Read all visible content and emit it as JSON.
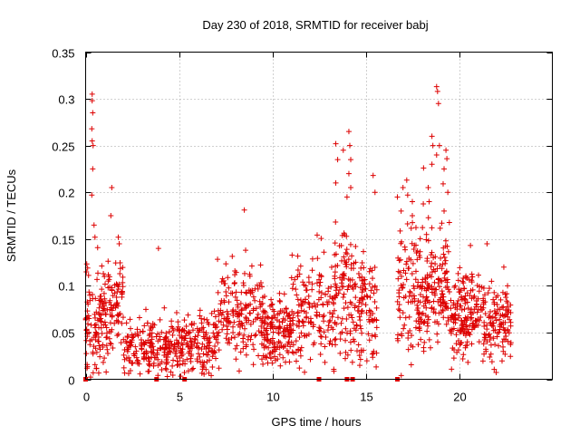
{
  "chart_data": {
    "type": "scatter",
    "title": "Day 230 of 2018, SRMTID for receiver babj",
    "xlabel": "GPS time / hours",
    "ylabel": "SRMTID / TECUs",
    "xlim": [
      0,
      25
    ],
    "ylim": [
      0,
      0.35
    ],
    "xticks": [
      0,
      5,
      10,
      15,
      20
    ],
    "xtick_labels": [
      "0",
      "5",
      "10",
      "15",
      "20"
    ],
    "yticks": [
      0,
      0.05,
      0.1,
      0.15,
      0.2,
      0.25,
      0.3,
      0.35
    ],
    "ytick_labels": [
      "0",
      "0.05",
      "0.1",
      "0.15",
      "0.2",
      "0.25",
      "0.3",
      "0.35"
    ],
    "grid": true,
    "marker": "+",
    "color": "#dd0000",
    "highlight_points": [
      [
        0.35,
        0.305
      ],
      [
        0.35,
        0.298
      ],
      [
        0.38,
        0.285
      ],
      [
        0.33,
        0.268
      ],
      [
        0.35,
        0.255
      ],
      [
        0.4,
        0.25
      ],
      [
        0.38,
        0.225
      ],
      [
        0.33,
        0.197
      ],
      [
        0.45,
        0.165
      ],
      [
        0.5,
        0.152
      ],
      [
        1.4,
        0.205
      ],
      [
        1.35,
        0.175
      ],
      [
        1.75,
        0.152
      ],
      [
        1.8,
        0.145
      ],
      [
        3.9,
        0.14
      ],
      [
        8.5,
        0.181
      ],
      [
        13.4,
        0.252
      ],
      [
        13.5,
        0.235
      ],
      [
        13.4,
        0.21
      ],
      [
        13.8,
        0.245
      ],
      [
        14.1,
        0.265
      ],
      [
        14.15,
        0.25
      ],
      [
        14.2,
        0.235
      ],
      [
        14.1,
        0.22
      ],
      [
        14.2,
        0.205
      ],
      [
        14.0,
        0.195
      ],
      [
        15.4,
        0.218
      ],
      [
        15.5,
        0.2
      ],
      [
        16.7,
        0.195
      ],
      [
        16.9,
        0.18
      ],
      [
        17.0,
        0.205
      ],
      [
        17.2,
        0.213
      ],
      [
        17.25,
        0.197
      ],
      [
        17.5,
        0.19
      ],
      [
        17.5,
        0.175
      ],
      [
        18.1,
        0.226
      ],
      [
        18.35,
        0.205
      ],
      [
        18.4,
        0.19
      ],
      [
        18.55,
        0.26
      ],
      [
        18.6,
        0.25
      ],
      [
        18.55,
        0.23
      ],
      [
        18.8,
        0.313
      ],
      [
        18.85,
        0.308
      ],
      [
        18.9,
        0.295
      ],
      [
        18.8,
        0.24
      ],
      [
        18.95,
        0.25
      ],
      [
        19.3,
        0.245
      ],
      [
        19.35,
        0.236
      ],
      [
        19.2,
        0.225
      ],
      [
        19.15,
        0.209
      ],
      [
        19.4,
        0.2
      ],
      [
        19.2,
        0.18
      ],
      [
        21.5,
        0.145
      ],
      [
        22.4,
        0.12
      ],
      [
        22.6,
        0.1
      ]
    ],
    "density_model": [
      {
        "x_from": 0.0,
        "x_to": 1.2,
        "y_center": 0.06,
        "y_spread": 0.045,
        "count": 120
      },
      {
        "x_from": 1.2,
        "x_to": 2.0,
        "y_center": 0.08,
        "y_spread": 0.04,
        "count": 70
      },
      {
        "x_from": 2.0,
        "x_to": 5.5,
        "y_center": 0.035,
        "y_spread": 0.025,
        "count": 250
      },
      {
        "x_from": 5.5,
        "x_to": 7.0,
        "y_center": 0.04,
        "y_spread": 0.03,
        "count": 110
      },
      {
        "x_from": 7.0,
        "x_to": 9.5,
        "y_center": 0.065,
        "y_spread": 0.045,
        "count": 180
      },
      {
        "x_from": 9.5,
        "x_to": 11.0,
        "y_center": 0.05,
        "y_spread": 0.03,
        "count": 140
      },
      {
        "x_from": 11.0,
        "x_to": 13.3,
        "y_center": 0.075,
        "y_spread": 0.045,
        "count": 160
      },
      {
        "x_from": 13.3,
        "x_to": 14.5,
        "y_center": 0.09,
        "y_spread": 0.06,
        "count": 110
      },
      {
        "x_from": 14.5,
        "x_to": 15.6,
        "y_center": 0.075,
        "y_spread": 0.055,
        "count": 90
      },
      {
        "x_from": 16.7,
        "x_to": 18.0,
        "y_center": 0.095,
        "y_spread": 0.055,
        "count": 110
      },
      {
        "x_from": 18.0,
        "x_to": 19.5,
        "y_center": 0.1,
        "y_spread": 0.05,
        "count": 150
      },
      {
        "x_from": 19.5,
        "x_to": 21.0,
        "y_center": 0.07,
        "y_spread": 0.04,
        "count": 150
      },
      {
        "x_from": 21.0,
        "x_to": 22.8,
        "y_center": 0.06,
        "y_spread": 0.035,
        "count": 140
      }
    ],
    "zero_markers_x": [
      0.0,
      3.8,
      5.3,
      12.5,
      14.0,
      14.3,
      16.7
    ]
  }
}
